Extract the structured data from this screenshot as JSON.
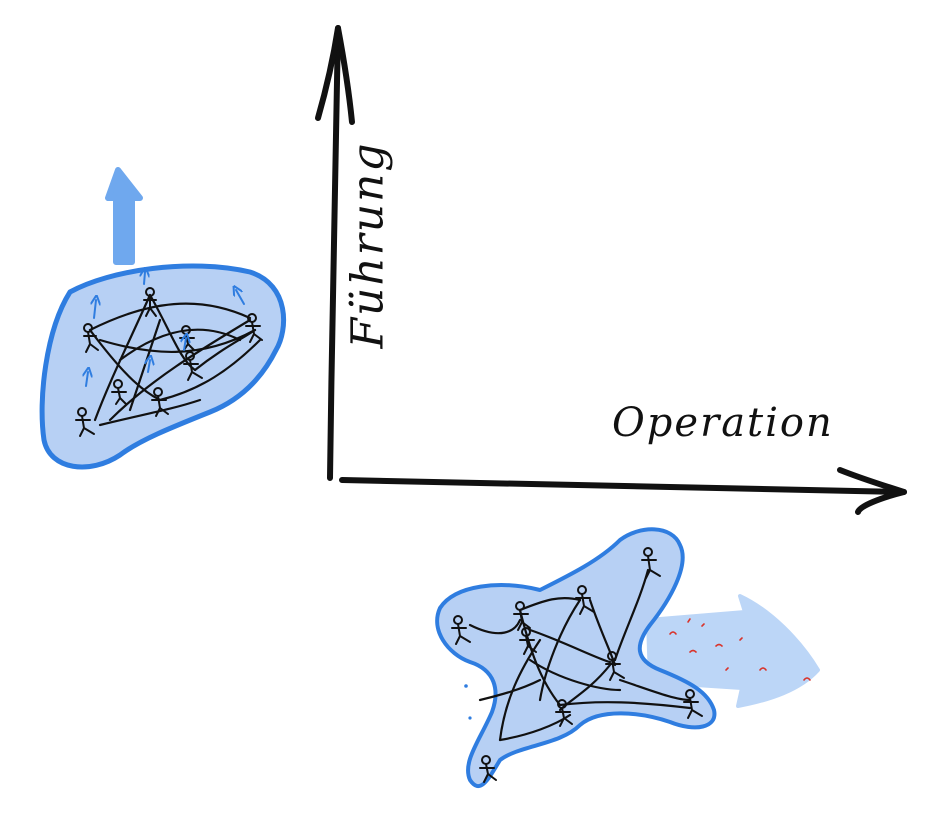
{
  "axes": {
    "y_label": "Führung",
    "x_label": "Operation"
  },
  "colors": {
    "ink": "#111111",
    "blob_fill": "#b7d0f4",
    "blob_stroke": "#2f7de0",
    "arrow_up": "#6fa8ee",
    "arrow_right": "#bcd6f7",
    "red_marks": "#d9342b"
  },
  "groups": {
    "left": {
      "people": 8,
      "arrow_direction": "up"
    },
    "right": {
      "people": 9,
      "arrow_direction": "right"
    }
  }
}
